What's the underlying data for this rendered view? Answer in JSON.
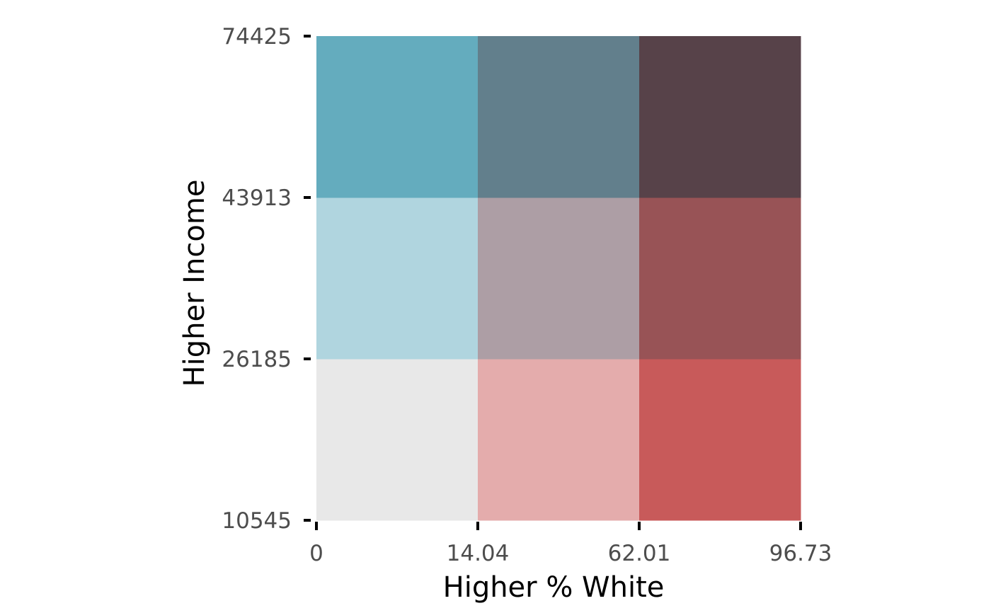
{
  "chart_data": {
    "type": "heatmap",
    "title": "",
    "xlabel": "Higher % White",
    "ylabel": "Higher Income",
    "x_breaks": [
      "0",
      "14.04",
      "62.01",
      "96.73"
    ],
    "y_breaks": [
      "10545",
      "26185",
      "43913",
      "74425"
    ],
    "grid": false,
    "legend": "none",
    "cells": [
      {
        "col": 1,
        "row": 1,
        "color": "#e8e8e8"
      },
      {
        "col": 2,
        "row": 1,
        "color": "#e4acac"
      },
      {
        "col": 3,
        "row": 1,
        "color": "#c85a5a"
      },
      {
        "col": 1,
        "row": 2,
        "color": "#b0d5df"
      },
      {
        "col": 2,
        "row": 2,
        "color": "#ad9ea5"
      },
      {
        "col": 3,
        "row": 2,
        "color": "#985356"
      },
      {
        "col": 1,
        "row": 3,
        "color": "#64acbe"
      },
      {
        "col": 2,
        "row": 3,
        "color": "#627f8c"
      },
      {
        "col": 3,
        "row": 3,
        "color": "#574249"
      }
    ]
  }
}
